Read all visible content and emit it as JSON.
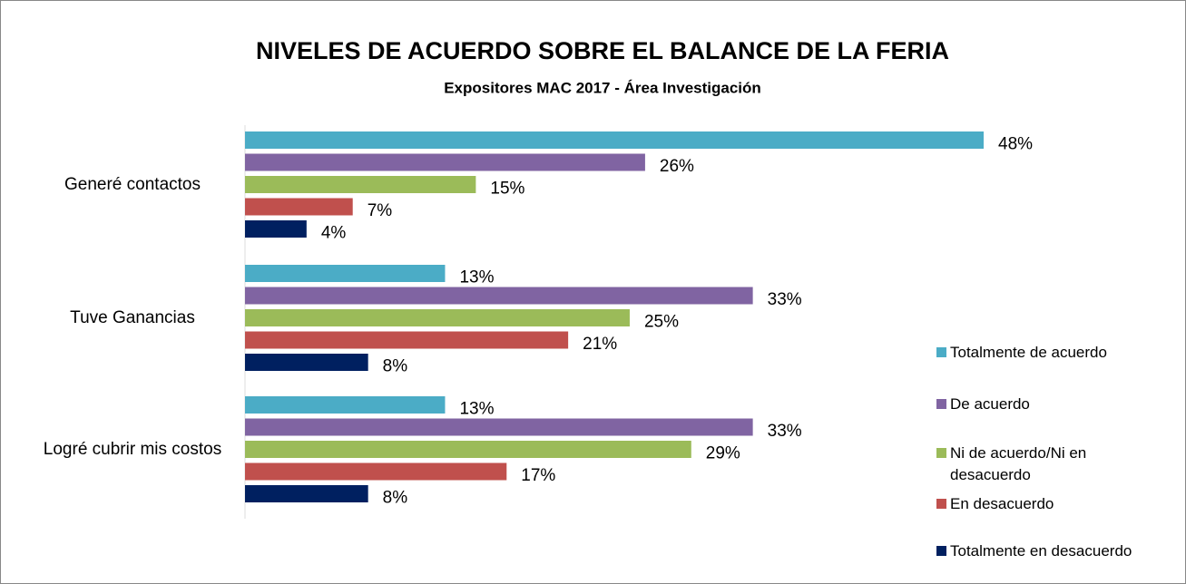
{
  "chart_data": {
    "type": "bar",
    "orientation": "horizontal",
    "title": "NIVELES DE ACUERDO SOBRE EL BALANCE DE LA FERIA",
    "subtitle": "Expositores MAC 2017 - Área Investigación",
    "categories": [
      "Generé contactos",
      "Tuve Ganancias",
      "Logré cubrir mis costos"
    ],
    "series": [
      {
        "name": "Totalmente de acuerdo",
        "color": "#4bacc6",
        "values": [
          48,
          13,
          13
        ],
        "value_labels": [
          "48%",
          "13%",
          "13%"
        ]
      },
      {
        "name": "De acuerdo",
        "color": "#8064a2",
        "values": [
          26,
          33,
          33
        ],
        "value_labels": [
          "26%",
          "33%",
          "33%"
        ]
      },
      {
        "name": "Ni de acuerdo/Ni en desacuerdo",
        "color": "#9bbb59",
        "values": [
          15,
          25,
          29
        ],
        "value_labels": [
          "15%",
          "25%",
          "29%"
        ]
      },
      {
        "name": "En desacuerdo",
        "color": "#c0504d",
        "values": [
          7,
          21,
          17
        ],
        "value_labels": [
          "7%",
          "21%",
          "17%"
        ]
      },
      {
        "name": "Totalmente en desacuerdo",
        "color": "#002060",
        "values": [
          4,
          8,
          8
        ],
        "value_labels": [
          "4%",
          "8%",
          "8%"
        ]
      }
    ],
    "legend": "right"
  }
}
